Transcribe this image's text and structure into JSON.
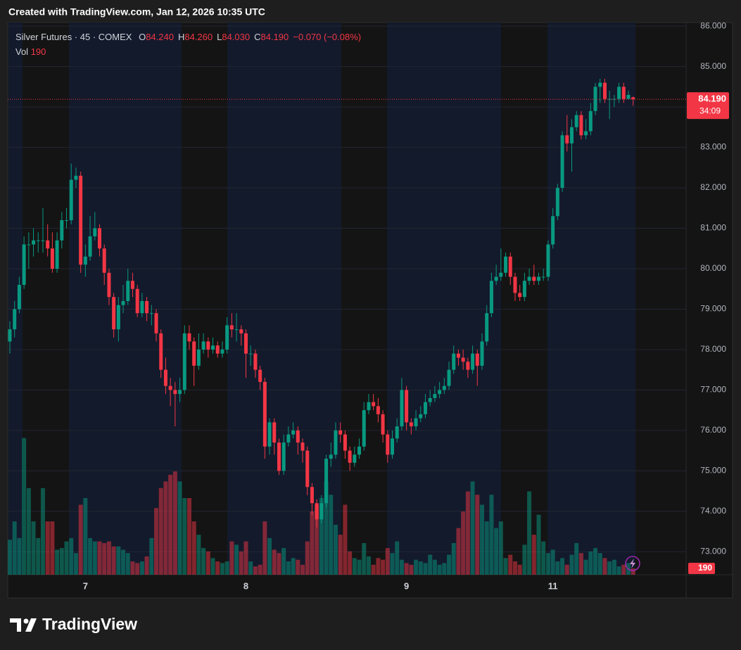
{
  "header": {
    "created": "Created with TradingView.com, Jan 12, 2026 10:35 UTC"
  },
  "legend": {
    "symbol": "Silver Futures · 45 · COMEX",
    "ohlc": [
      {
        "key": "O",
        "value": "84.240"
      },
      {
        "key": "H",
        "value": "84.260"
      },
      {
        "key": "L",
        "value": "84.030"
      },
      {
        "key": "C",
        "value": "84.190"
      }
    ],
    "change": "−0.070 (−0.08%)",
    "volume_key": "Vol"
  },
  "footer": {
    "brand": "TradingView"
  },
  "chart_data": {
    "type": "candlestick",
    "categories": [
      null,
      null,
      null,
      null,
      null,
      null,
      null,
      null,
      null,
      null,
      null,
      null,
      null,
      null,
      null,
      null,
      "7",
      null,
      null,
      null,
      null,
      null,
      null,
      null,
      null,
      null,
      null,
      null,
      null,
      null,
      null,
      null,
      null,
      null,
      null,
      null,
      null,
      null,
      null,
      null,
      null,
      null,
      null,
      null,
      null,
      null,
      null,
      null,
      null,
      null,
      "8",
      null,
      null,
      null,
      null,
      null,
      null,
      null,
      null,
      null,
      null,
      null,
      null,
      null,
      null,
      null,
      null,
      null,
      null,
      null,
      null,
      null,
      null,
      null,
      null,
      null,
      null,
      null,
      null,
      null,
      null,
      null,
      null,
      null,
      "9",
      null,
      null,
      null,
      null,
      null,
      null,
      null,
      null,
      null,
      null,
      null,
      null,
      null,
      null,
      null,
      null,
      null,
      null,
      null,
      null,
      null,
      null,
      null,
      null,
      null,
      null,
      null,
      null,
      null,
      null,
      "11",
      null,
      null,
      null,
      null,
      null,
      null,
      null,
      null,
      null,
      null,
      null,
      null,
      null,
      null,
      null,
      null,
      null
    ],
    "open": [
      78.2,
      78.5,
      79.0,
      79.6,
      80.6,
      80.6,
      80.7,
      80.7,
      80.7,
      80.5,
      80.0,
      80.7,
      81.2,
      81.2,
      82.2,
      82.3,
      80.1,
      80.3,
      80.8,
      81.0,
      80.5,
      79.9,
      79.3,
      78.5,
      79.1,
      79.2,
      79.7,
      79.5,
      78.9,
      79.2,
      78.9,
      78.9,
      78.4,
      77.5,
      77.1,
      77.0,
      76.9,
      77.0,
      78.4,
      78.2,
      77.6,
      78.0,
      78.2,
      78.0,
      78.1,
      77.9,
      78.0,
      78.6,
      78.5,
      78.5,
      78.4,
      77.9,
      77.9,
      77.5,
      77.2,
      75.6,
      76.2,
      75.7,
      75.0,
      75.7,
      75.9,
      76.0,
      75.7,
      75.5,
      74.6,
      74.2,
      73.8,
      74.2,
      75.3,
      75.4,
      76.0,
      75.9,
      75.5,
      75.2,
      75.4,
      75.6,
      76.5,
      76.7,
      76.6,
      76.4,
      75.9,
      75.4,
      75.8,
      76.1,
      77.0,
      76.2,
      76.1,
      76.3,
      76.4,
      76.7,
      76.8,
      76.9,
      77.0,
      77.1,
      77.5,
      77.9,
      77.8,
      77.7,
      77.5,
      77.9,
      77.6,
      78.2,
      78.9,
      79.7,
      79.8,
      79.9,
      80.3,
      79.8,
      79.4,
      79.3,
      79.7,
      79.8,
      79.7,
      79.8,
      79.8,
      80.6,
      81.3,
      82.0,
      83.3,
      83.1,
      83.5,
      83.8,
      83.3,
      83.4,
      83.9,
      84.5,
      84.6,
      84.2,
      84.2,
      84.2,
      84.5,
      84.2,
      84.24
    ],
    "high": [
      78.7,
      79.2,
      79.8,
      80.8,
      80.9,
      81.0,
      80.9,
      81.5,
      81.1,
      80.9,
      80.9,
      81.4,
      81.5,
      82.6,
      82.5,
      82.4,
      80.6,
      81.3,
      81.4,
      81.1,
      80.6,
      80.0,
      79.4,
      79.3,
      79.6,
      80.0,
      79.9,
      79.6,
      79.4,
      79.3,
      79.1,
      79.0,
      78.5,
      77.8,
      77.3,
      77.2,
      77.3,
      78.6,
      78.6,
      78.3,
      78.4,
      78.4,
      78.3,
      78.3,
      78.2,
      78.2,
      78.8,
      78.9,
      78.9,
      78.6,
      78.5,
      78.1,
      78.0,
      77.6,
      77.3,
      76.3,
      76.3,
      75.8,
      75.9,
      76.1,
      76.2,
      76.1,
      75.8,
      75.6,
      74.7,
      74.3,
      74.4,
      75.4,
      75.7,
      76.2,
      76.2,
      76.0,
      75.6,
      75.6,
      75.8,
      76.7,
      76.9,
      76.9,
      76.8,
      76.5,
      76.0,
      76.0,
      76.3,
      77.3,
      77.1,
      76.3,
      76.5,
      76.6,
      76.9,
      77.0,
      77.1,
      77.2,
      77.3,
      77.7,
      78.1,
      78.0,
      78.0,
      77.8,
      78.1,
      78.0,
      78.4,
      79.1,
      79.9,
      80.1,
      80.5,
      80.4,
      80.4,
      79.9,
      79.6,
      79.9,
      80.0,
      80.1,
      79.9,
      80.0,
      80.7,
      81.5,
      82.1,
      83.4,
      83.8,
      83.7,
      83.9,
      83.9,
      83.7,
      84.1,
      84.6,
      84.7,
      84.7,
      84.4,
      84.3,
      84.6,
      84.6,
      84.4,
      84.26
    ],
    "low": [
      77.9,
      78.3,
      78.9,
      79.5,
      80.0,
      80.3,
      80.4,
      80.4,
      80.3,
      79.9,
      79.9,
      80.5,
      81.0,
      81.1,
      82.0,
      79.9,
      79.8,
      80.2,
      80.7,
      80.3,
      79.6,
      79.1,
      78.3,
      78.2,
      78.9,
      79.1,
      79.3,
      78.8,
      78.8,
      78.7,
      78.6,
      78.2,
      77.3,
      76.9,
      76.6,
      76.1,
      76.7,
      76.9,
      78.0,
      77.1,
      77.5,
      77.9,
      77.8,
      77.9,
      77.8,
      77.8,
      77.9,
      78.3,
      78.2,
      78.1,
      77.3,
      77.6,
      77.3,
      77.0,
      75.3,
      75.4,
      75.4,
      74.9,
      74.9,
      75.6,
      75.8,
      75.4,
      75.2,
      74.4,
      73.9,
      73.6,
      73.7,
      74.1,
      75.1,
      75.3,
      75.7,
      75.3,
      75.0,
      75.1,
      75.3,
      75.5,
      76.4,
      76.5,
      76.2,
      75.7,
      75.2,
      75.3,
      75.7,
      76.0,
      76.0,
      75.9,
      76.0,
      76.2,
      76.3,
      76.6,
      76.7,
      76.8,
      76.9,
      77.0,
      77.4,
      77.6,
      77.5,
      77.3,
      77.4,
      77.1,
      77.5,
      78.1,
      78.8,
      79.6,
      79.7,
      79.8,
      79.6,
      79.2,
      79.2,
      79.2,
      79.6,
      79.6,
      79.6,
      79.7,
      79.7,
      80.5,
      81.2,
      81.9,
      82.9,
      82.4,
      83.4,
      83.2,
      83.2,
      83.3,
      83.8,
      84.1,
      84.1,
      83.7,
      84.0,
      84.1,
      84.1,
      84.2,
      84.03
    ],
    "close": [
      78.5,
      79.0,
      79.6,
      80.6,
      80.6,
      80.7,
      80.7,
      80.7,
      80.5,
      80.0,
      80.7,
      81.2,
      81.2,
      82.2,
      82.3,
      80.1,
      80.3,
      80.8,
      81.0,
      80.5,
      79.9,
      79.3,
      78.5,
      79.1,
      79.2,
      79.7,
      79.5,
      78.9,
      79.2,
      78.9,
      78.9,
      78.4,
      77.5,
      77.1,
      77.0,
      76.9,
      77.0,
      78.4,
      78.2,
      77.6,
      78.0,
      78.2,
      78.0,
      78.1,
      77.9,
      78.0,
      78.6,
      78.5,
      78.5,
      78.4,
      77.9,
      77.9,
      77.5,
      77.2,
      75.6,
      76.2,
      75.7,
      75.0,
      75.7,
      75.9,
      76.0,
      75.7,
      75.5,
      74.6,
      74.2,
      73.8,
      74.2,
      75.3,
      75.4,
      76.0,
      75.9,
      75.5,
      75.2,
      75.4,
      75.6,
      76.5,
      76.7,
      76.6,
      76.4,
      75.9,
      75.4,
      75.8,
      76.1,
      77.0,
      76.2,
      76.1,
      76.3,
      76.4,
      76.7,
      76.8,
      76.9,
      77.0,
      77.1,
      77.5,
      77.9,
      77.8,
      77.7,
      77.5,
      77.9,
      77.6,
      78.2,
      78.9,
      79.7,
      79.8,
      79.9,
      80.3,
      79.8,
      79.4,
      79.3,
      79.7,
      79.8,
      79.7,
      79.8,
      79.8,
      80.6,
      81.3,
      82.0,
      83.3,
      83.1,
      83.5,
      83.8,
      83.3,
      83.4,
      83.9,
      84.5,
      84.6,
      84.2,
      84.2,
      84.2,
      84.5,
      84.2,
      84.3,
      84.19
    ],
    "volume": [
      1050,
      1600,
      1100,
      4100,
      2600,
      1600,
      1100,
      2600,
      1600,
      1600,
      750,
      800,
      1000,
      1100,
      650,
      2100,
      2300,
      1100,
      1000,
      1000,
      950,
      1000,
      850,
      850,
      750,
      650,
      400,
      350,
      400,
      550,
      1100,
      2000,
      2600,
      2800,
      3000,
      3100,
      2800,
      2300,
      2300,
      1600,
      1200,
      800,
      700,
      500,
      400,
      350,
      400,
      1000,
      900,
      700,
      1000,
      400,
      250,
      300,
      1600,
      1100,
      750,
      650,
      800,
      400,
      500,
      450,
      300,
      1000,
      1900,
      2100,
      2300,
      2800,
      2400,
      1500,
      1200,
      2100,
      700,
      500,
      450,
      950,
      550,
      300,
      500,
      450,
      800,
      650,
      1000,
      450,
      350,
      300,
      450,
      400,
      350,
      600,
      450,
      300,
      350,
      600,
      950,
      1400,
      1900,
      2500,
      2800,
      2400,
      2100,
      1600,
      2400,
      1400,
      1600,
      500,
      600,
      400,
      300,
      900,
      2500,
      1200,
      1800,
      1000,
      650,
      750,
      400,
      500,
      300,
      600,
      950,
      650,
      450,
      700,
      800,
      650,
      500,
      400,
      450,
      250,
      300,
      350,
      190
    ],
    "ylim": [
      72.43,
      86.09
    ],
    "yticks": [
      {
        "value": 86,
        "label": "86.000"
      },
      {
        "value": 85,
        "label": "85.000"
      },
      {
        "value": 84,
        "label": "84.000"
      },
      {
        "value": 83,
        "label": "83.000"
      },
      {
        "value": 82,
        "label": "82.000"
      },
      {
        "value": 81,
        "label": "81.000"
      },
      {
        "value": 80,
        "label": "80.000"
      },
      {
        "value": 79,
        "label": "79.000"
      },
      {
        "value": 78,
        "label": "78.000"
      },
      {
        "value": 77,
        "label": "77.000"
      },
      {
        "value": 76,
        "label": "76.000"
      },
      {
        "value": 75,
        "label": "75.000"
      },
      {
        "value": 74,
        "label": "74.000"
      },
      {
        "value": 73,
        "label": "73.000"
      }
    ],
    "volume_ylim": [
      0,
      4200
    ],
    "price_tag": {
      "label": "84.190",
      "countdown": "34:09"
    },
    "up_color": "#089981",
    "down_color": "#f23645",
    "grid": true
  }
}
